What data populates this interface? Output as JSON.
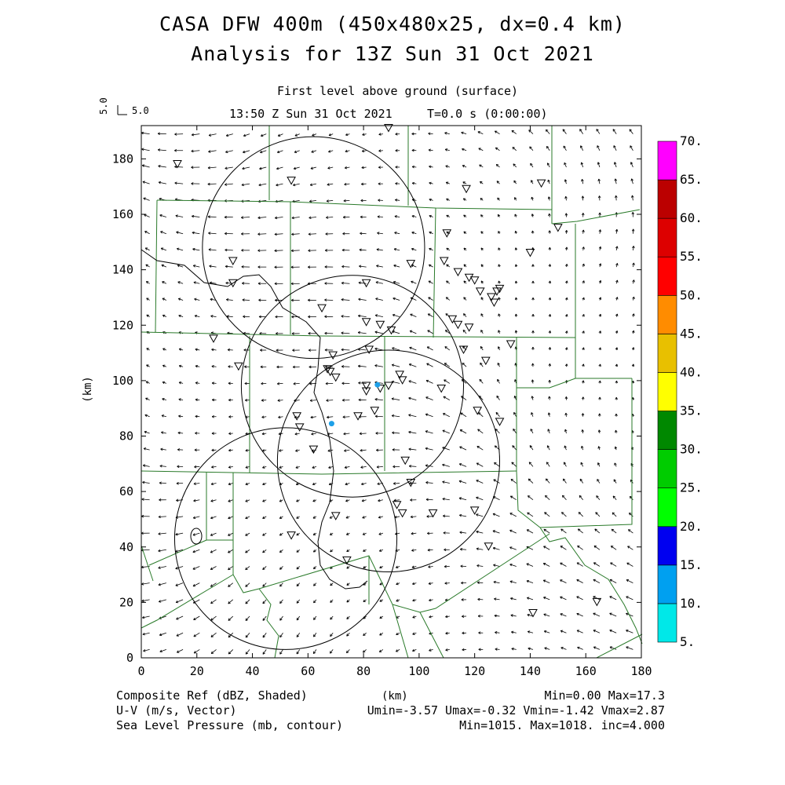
{
  "header": {
    "title_line1": "CASA DFW 400m (450x480x25, dx=0.4 km)",
    "title_line2": "Analysis for 13Z Sun 31 Oct 2021",
    "level": "First level above ground (surface)",
    "time": "13:50 Z Sun 31 Oct 2021",
    "model_time": "T=0.0 s (0:00:00)",
    "ref_vector_label": "5.0",
    "ref_vector_label_side": "5.0"
  },
  "footer": {
    "field1": "Composite Ref (dBZ, Shaded)",
    "field2": "U-V (m/s, Vector)",
    "field3": "Sea Level Pressure (mb, contour)",
    "xunits": "(km)",
    "stats1": "Min=0.00 Max=17.3",
    "stats2": "Umin=-3.57 Umax=-0.32 Vmin=-1.42 Vmax=2.87",
    "stats3": "Min=1015. Max=1018. inc=4.000"
  },
  "chart_data": {
    "type": "heatmap",
    "xlabel": "(km)",
    "ylabel": "(km)",
    "xlim": [
      0,
      180
    ],
    "ylim": [
      0,
      192
    ],
    "xticks": [
      0,
      20,
      40,
      60,
      80,
      100,
      120,
      140,
      160,
      180
    ],
    "yticks": [
      0,
      20,
      40,
      60,
      80,
      100,
      120,
      140,
      160,
      180
    ],
    "colorbar": {
      "labels": [
        "5.",
        "10.",
        "15.",
        "20.",
        "25.",
        "30.",
        "35.",
        "40.",
        "45.",
        "50.",
        "55.",
        "60.",
        "65.",
        "70."
      ],
      "colors": [
        "#00e8e8",
        "#00a0f0",
        "#0000f0",
        "#00ff00",
        "#00cc00",
        "#008800",
        "#ffff00",
        "#e8c000",
        "#ff8c00",
        "#ff0000",
        "#dd0000",
        "#bb0000",
        "#ff00ff"
      ]
    },
    "radar_circles": [
      {
        "cx": 62,
        "cy": 148,
        "r": 40
      },
      {
        "cx": 76,
        "cy": 98,
        "r": 40
      },
      {
        "cx": 52,
        "cy": 43,
        "r": 40
      },
      {
        "cx": 89,
        "cy": 71,
        "r": 40
      }
    ],
    "radar_sites": [
      {
        "x": 85,
        "y": 98.5
      },
      {
        "x": 68.5,
        "y": 84.5
      }
    ],
    "stations": [
      [
        13,
        178
      ],
      [
        54,
        172
      ],
      [
        117,
        169
      ],
      [
        144,
        171
      ],
      [
        150,
        155
      ],
      [
        110,
        153
      ],
      [
        140,
        146
      ],
      [
        33,
        143
      ],
      [
        109,
        143
      ],
      [
        97,
        142
      ],
      [
        114,
        139
      ],
      [
        118,
        137
      ],
      [
        120,
        136
      ],
      [
        122,
        132
      ],
      [
        126,
        130
      ],
      [
        128,
        132
      ],
      [
        127,
        128
      ],
      [
        129,
        133
      ],
      [
        33,
        135
      ],
      [
        81,
        135
      ],
      [
        65,
        126
      ],
      [
        81,
        121
      ],
      [
        86,
        120
      ],
      [
        90,
        118
      ],
      [
        112,
        122
      ],
      [
        114,
        120
      ],
      [
        118,
        119
      ],
      [
        26,
        115
      ],
      [
        82,
        111
      ],
      [
        116,
        111
      ],
      [
        133,
        113
      ],
      [
        124,
        107
      ],
      [
        35,
        105
      ],
      [
        69,
        109
      ],
      [
        67,
        104
      ],
      [
        68,
        103
      ],
      [
        70,
        101
      ],
      [
        93,
        102
      ],
      [
        94,
        100
      ],
      [
        81,
        98
      ],
      [
        86,
        97
      ],
      [
        89,
        98
      ],
      [
        81,
        96
      ],
      [
        108,
        97
      ],
      [
        56,
        87
      ],
      [
        57,
        83
      ],
      [
        78,
        87
      ],
      [
        84,
        89
      ],
      [
        121,
        89
      ],
      [
        129,
        85
      ],
      [
        62,
        75
      ],
      [
        95,
        71
      ],
      [
        97,
        63
      ],
      [
        92,
        55
      ],
      [
        94,
        52
      ],
      [
        70,
        51
      ],
      [
        105,
        52
      ],
      [
        120,
        53
      ],
      [
        54,
        44
      ],
      [
        125,
        40
      ],
      [
        74,
        35
      ],
      [
        141,
        16
      ],
      [
        164,
        20
      ],
      [
        89,
        191
      ]
    ],
    "wind_vector": {
      "u_min": -3.57,
      "u_max": -0.32,
      "v_min": -1.42,
      "v_max": 2.87
    },
    "composite_ref": {
      "min": 0.0,
      "max": 17.3
    },
    "pressure": {
      "min": 1015,
      "max": 1018,
      "inc": 4.0
    }
  }
}
